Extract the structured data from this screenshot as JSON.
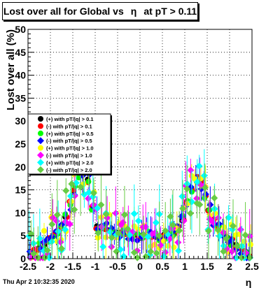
{
  "title": {
    "prefix": "Lost over all for Global vs",
    "eta": "η",
    "suffix": "at pT > 0.11"
  },
  "footer": {
    "timestamp": "Thu Apr  2 10:32:35 2020"
  },
  "chart_data": {
    "type": "scatter",
    "xlabel": "η",
    "ylabel": "Lost over all (%)",
    "xlim": [
      -2.5,
      2.5
    ],
    "ylim": [
      0,
      50
    ],
    "x_ticks": [
      "-2.5",
      "-2",
      "-1.5",
      "-1",
      "-0.5",
      "0",
      "0.5",
      "1",
      "1.5",
      "2",
      "2.5"
    ],
    "y_ticks": [
      "0",
      "5",
      "10",
      "15",
      "20",
      "25",
      "30",
      "35",
      "40",
      "45",
      "50"
    ],
    "grid": true,
    "legend_position": "left-middle",
    "series": [
      {
        "name": "(+) with pT/|q| > 0.1",
        "color": "#000000",
        "shape": "circle"
      },
      {
        "name": "(-) with pT/|q| > 0.1",
        "color": "#ff0000",
        "shape": "circle"
      },
      {
        "name": "(+) with pT/|q| > 0.5",
        "color": "#00ff00",
        "shape": "circle"
      },
      {
        "name": "(-) with pT/|q| > 0.5",
        "color": "#0000ff",
        "shape": "diamond"
      },
      {
        "name": "(+) with pT/|q| > 1.0",
        "color": "#ffff00",
        "shape": "circle"
      },
      {
        "name": "(-) with pT/|q| > 1.0",
        "color": "#ff00ff",
        "shape": "diamond"
      },
      {
        "name": "(+) with pT/|q| > 2.0",
        "color": "#00ffff",
        "shape": "diamond"
      },
      {
        "name": "(-) with pT/|q| > 2.0",
        "color": "#66cc44",
        "shape": "diamond"
      }
    ],
    "profile": {
      "x": [
        -2.45,
        -2.35,
        -2.25,
        -2.15,
        -2.05,
        -1.95,
        -1.85,
        -1.75,
        -1.65,
        -1.55,
        -1.45,
        -1.35,
        -1.25,
        -1.15,
        -1.05,
        -0.95,
        -0.85,
        -0.75,
        -0.65,
        -0.55,
        -0.45,
        -0.35,
        -0.25,
        -0.15,
        -0.05,
        0.05,
        0.15,
        0.25,
        0.35,
        0.45,
        0.55,
        0.65,
        0.75,
        0.85,
        0.95,
        1.05,
        1.15,
        1.25,
        1.35,
        1.45,
        1.55,
        1.65,
        1.75,
        1.85,
        1.95,
        2.05,
        2.15,
        2.25,
        2.35,
        2.45
      ],
      "y": [
        0.5,
        1.5,
        2.5,
        3.3,
        4.3,
        5.3,
        5.8,
        7.0,
        9.0,
        12.0,
        15.0,
        18.5,
        19.0,
        17.0,
        11.0,
        7.0,
        6.8,
        6.5,
        6.2,
        6.0,
        5.8,
        5.6,
        5.4,
        5.2,
        5.0,
        5.0,
        5.2,
        5.3,
        5.0,
        4.8,
        5.0,
        5.2,
        5.5,
        6.5,
        8.5,
        12.0,
        15.0,
        17.5,
        16.5,
        13.5,
        10.5,
        8.0,
        6.5,
        5.3,
        4.5,
        3.8,
        3.0,
        2.2,
        1.5,
        0.5
      ]
    }
  }
}
